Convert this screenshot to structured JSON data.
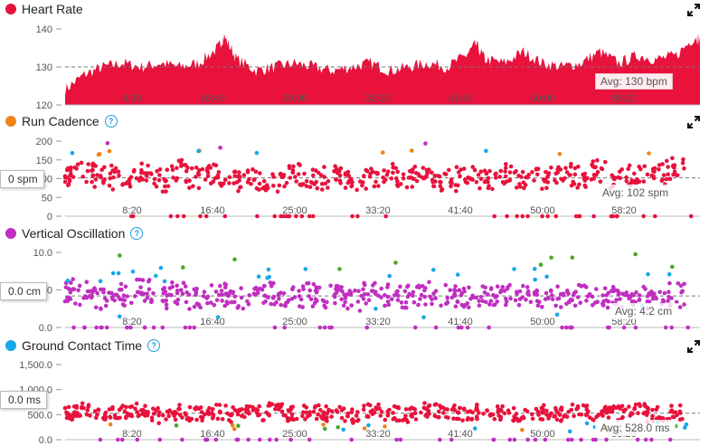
{
  "x_ticks": [
    "8:20",
    "16:40",
    "25:00",
    "33:20",
    "41:40",
    "50:00",
    "58:20"
  ],
  "colors": {
    "heart_rate": "#e8123c",
    "cadence_legend": "#f08418",
    "vertical_oscillation": "#c02fc0",
    "ground_contact_legend": "#18a8e8",
    "point_red": "#e8123c",
    "point_orange": "#f08418",
    "point_blue": "#18a8e8",
    "point_green": "#4aa82a",
    "point_purple": "#c02fc0"
  },
  "panels": {
    "heart_rate": {
      "title": "Heart Rate",
      "avg_label": "Avg: 130 bpm",
      "y_ticks": [
        "140",
        "130",
        "120"
      ]
    },
    "run_cadence": {
      "title": "Run Cadence",
      "avg_label": "Avg: 102 spm",
      "cursor_label": "0 spm",
      "y_ticks": [
        "200",
        "150",
        "100",
        "50",
        "0"
      ]
    },
    "vertical_oscillation": {
      "title": "Vertical Oscillation",
      "avg_label": "Avg: 4.2 cm",
      "cursor_label": "0.0 cm",
      "y_ticks": [
        "10.0",
        "5.0",
        "0.0"
      ]
    },
    "ground_contact_time": {
      "title": "Ground Contact Time",
      "avg_label": "Avg: 528.0 ms",
      "cursor_label": "0.0 ms",
      "y_ticks": [
        "1,500.0",
        "1,000.0",
        "500.0",
        "0.0"
      ]
    }
  },
  "chart_data": [
    {
      "type": "area",
      "title": "Heart Rate",
      "x_unit": "elapsed time (mm:ss)",
      "xlim_seconds": [
        0,
        3990
      ],
      "ylim": [
        120,
        140
      ],
      "average": 130,
      "series": [
        {
          "name": "Heart Rate",
          "x": [
            0,
            120,
            240,
            360,
            480,
            600,
            720,
            840,
            960,
            1000,
            1080,
            1200,
            1320,
            1440,
            1560,
            1680,
            1800,
            1920,
            2040,
            2160,
            2280,
            2400,
            2520,
            2580,
            2640,
            2760,
            2880,
            3000,
            3120,
            3240,
            3360,
            3480,
            3600,
            3720,
            3840,
            3960,
            3990
          ],
          "y": [
            124,
            128,
            130,
            131,
            130,
            131,
            130,
            131,
            135,
            138,
            132,
            129,
            130,
            131,
            130,
            129,
            130,
            131,
            129,
            130,
            131,
            130,
            133,
            136,
            132,
            131,
            134,
            131,
            130,
            131,
            134,
            131,
            133,
            132,
            133,
            138,
            137
          ]
        }
      ]
    },
    {
      "type": "scatter",
      "title": "Run Cadence",
      "xlim_seconds": [
        0,
        3990
      ],
      "ylim": [
        0,
        200
      ],
      "average": 102,
      "series": [
        {
          "name": "Run Cadence",
          "x": [
            60,
            180,
            300,
            420,
            540,
            660,
            780,
            900,
            1020,
            1140,
            1260,
            1380,
            1500,
            1620,
            1740,
            1860,
            1980,
            2100,
            2220,
            2340,
            2460,
            2580,
            2700,
            2820,
            2940,
            3060,
            3180,
            3300,
            3420,
            3540,
            3660,
            3780,
            3900
          ],
          "y": [
            110,
            120,
            105,
            100,
            115,
            95,
            120,
            105,
            110,
            90,
            100,
            95,
            110,
            100,
            105,
            95,
            100,
            110,
            105,
            100,
            95,
            110,
            100,
            115,
            95,
            100,
            110,
            105,
            120,
            100,
            110,
            115,
            125
          ]
        }
      ]
    },
    {
      "type": "scatter",
      "title": "Vertical Oscillation",
      "xlim_seconds": [
        0,
        3990
      ],
      "ylim": [
        0,
        10
      ],
      "average": 4.2,
      "series": [
        {
          "name": "Vertical Oscillation",
          "x": [
            60,
            180,
            300,
            420,
            540,
            660,
            780,
            900,
            1020,
            1140,
            1260,
            1380,
            1500,
            1620,
            1740,
            1860,
            1980,
            2100,
            2220,
            2340,
            2460,
            2580,
            2700,
            2820,
            2940,
            3060,
            3180,
            3300,
            3420,
            3540,
            3660,
            3780,
            3900
          ],
          "y": [
            5.0,
            4.5,
            4.0,
            4.2,
            4.8,
            3.8,
            4.5,
            4.0,
            4.4,
            3.9,
            4.2,
            4.6,
            4.0,
            4.3,
            4.1,
            3.8,
            4.5,
            4.2,
            4.0,
            4.6,
            4.2,
            3.9,
            4.5,
            4.1,
            4.0,
            4.3,
            3.9,
            4.4,
            4.0,
            4.2,
            4.5,
            4.0,
            4.3
          ]
        }
      ]
    },
    {
      "type": "scatter",
      "title": "Ground Contact Time",
      "xlim_seconds": [
        0,
        3990
      ],
      "ylim": [
        0,
        1500
      ],
      "average": 528,
      "series": [
        {
          "name": "Ground Contact Time",
          "x": [
            60,
            180,
            300,
            420,
            540,
            660,
            780,
            900,
            1020,
            1140,
            1260,
            1380,
            1500,
            1620,
            1740,
            1860,
            1980,
            2100,
            2220,
            2340,
            2460,
            2580,
            2700,
            2820,
            2940,
            3060,
            3180,
            3300,
            3420,
            3540,
            3660,
            3780,
            3900
          ],
          "y": [
            520,
            580,
            500,
            540,
            600,
            480,
            550,
            520,
            560,
            500,
            530,
            590,
            510,
            540,
            520,
            480,
            560,
            530,
            500,
            580,
            540,
            490,
            560,
            520,
            510,
            550,
            490,
            560,
            520,
            530,
            570,
            500,
            540
          ]
        }
      ]
    }
  ]
}
